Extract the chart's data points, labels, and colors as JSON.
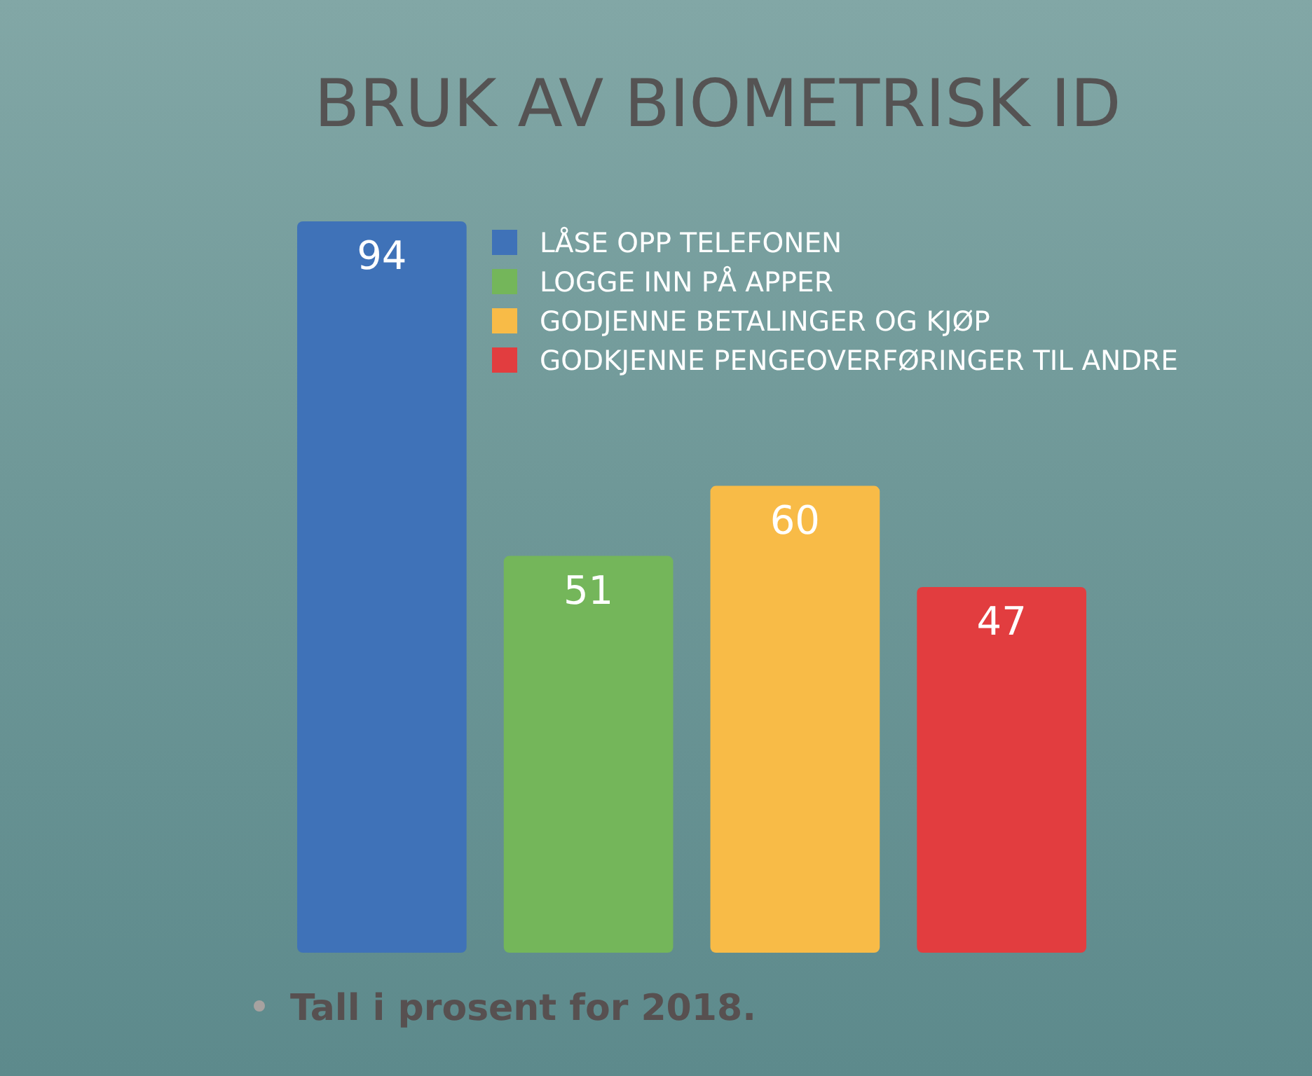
{
  "chart_data": {
    "type": "bar",
    "title": "BRUK AV BIOMETRISK ID",
    "categories": [
      null
    ],
    "series": [
      {
        "name": "LÅSE OPP TELEFONEN",
        "color": "#3f72b8",
        "values": [
          94
        ]
      },
      {
        "name": "LOGGE INN PÅ APPER",
        "color": "#74b65a",
        "values": [
          51
        ]
      },
      {
        "name": "GODJENNE BETALINGER OG KJØP",
        "color": "#f8bb47",
        "values": [
          60
        ]
      },
      {
        "name": "GODKJENNE PENGEOVERFØRINGER TIL ANDRE",
        "color": "#e23d3f",
        "values": [
          47
        ]
      }
    ],
    "data_labels": true,
    "legend": "top right",
    "annotations": [
      "Tall i prosent for 2018."
    ]
  }
}
